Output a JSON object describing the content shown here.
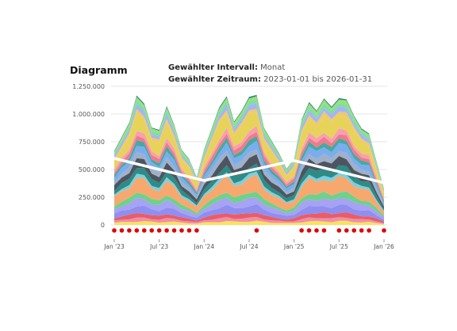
{
  "header": {
    "title": "Diagramm",
    "interval_label": "Gewählter Intervall:",
    "interval_value": "Monat",
    "range_label": "Gewählter Zeitraum:",
    "range_value": "2023-01-01 bis 2026-01-31"
  },
  "chart_data": {
    "type": "area",
    "stacked": true,
    "title": "Diagramm",
    "xlabel": "",
    "ylabel": "",
    "ylim": [
      -100000,
      1250000
    ],
    "grid": true,
    "y_ticks": [
      0,
      250000,
      500000,
      750000,
      1000000,
      1250000
    ],
    "y_tick_labels": [
      "0",
      "250.000",
      "500.000",
      "750.000",
      "1.000.000",
      "1.250.000"
    ],
    "x_tick_labels": [
      "Jan '23",
      "Jul '23",
      "Jan '24",
      "Jul '24",
      "Jan '25",
      "Jul '25",
      "Jan '26"
    ],
    "x_tick_index": [
      0,
      6,
      12,
      18,
      24,
      30,
      36
    ],
    "x": [
      "2023-01",
      "2023-02",
      "2023-03",
      "2023-04",
      "2023-05",
      "2023-06",
      "2023-07",
      "2023-08",
      "2023-09",
      "2023-10",
      "2023-11",
      "2023-12",
      "2024-01",
      "2024-02",
      "2024-03",
      "2024-04",
      "2024-05",
      "2024-06",
      "2024-07",
      "2024-08",
      "2024-09",
      "2024-10",
      "2024-11",
      "2024-12",
      "2025-01",
      "2025-02",
      "2025-03",
      "2025-04",
      "2025-05",
      "2025-06",
      "2025-07",
      "2025-08",
      "2025-09",
      "2025-10",
      "2025-11",
      "2025-12",
      "2026-01"
    ],
    "totals": [
      620000,
      760000,
      900000,
      1100000,
      1020000,
      850000,
      830000,
      1000000,
      850000,
      660000,
      570000,
      400000,
      650000,
      850000,
      1000000,
      1080000,
      900000,
      1000000,
      1080000,
      1100000,
      850000,
      730000,
      600000,
      480000,
      580000,
      900000,
      1030000,
      990000,
      1110000,
      1000000,
      1070000,
      1100000,
      950000,
      810000,
      780000,
      560000,
      310000
    ],
    "series_colors": [
      "#f8e45c",
      "#f08ea8",
      "#e85d6a",
      "#8f8ff0",
      "#a6a2f4",
      "#6fd18b",
      "#f7a86e",
      "#7ad0e0",
      "#2e8b86",
      "#4d5560",
      "#9fb0c8",
      "#78aef0",
      "#4aa8a0",
      "#f27a8a",
      "#f6a0b0",
      "#e7d35a",
      "#efc870",
      "#a5b4f4",
      "#7be0a0",
      "#98e07a",
      "#2f7f80"
    ],
    "series_shares": [
      0.03,
      0.03,
      0.04,
      0.06,
      0.06,
      0.05,
      0.12,
      0.03,
      0.06,
      0.07,
      0.05,
      0.06,
      0.04,
      0.04,
      0.04,
      0.13,
      0.03,
      0.04,
      0.03,
      0.03,
      0.01
    ],
    "trend": {
      "color": "#ffffff",
      "points": [
        [
          0,
          600000
        ],
        [
          12,
          400000
        ],
        [
          24,
          580000
        ],
        [
          36,
          380000
        ]
      ]
    },
    "markers": {
      "color": "#e00000",
      "y": -50000,
      "indices": [
        0,
        1,
        2,
        3,
        4,
        5,
        6,
        7,
        8,
        9,
        10,
        11,
        19,
        25,
        26,
        27,
        28,
        30,
        31,
        32,
        33,
        34,
        36
      ]
    }
  }
}
